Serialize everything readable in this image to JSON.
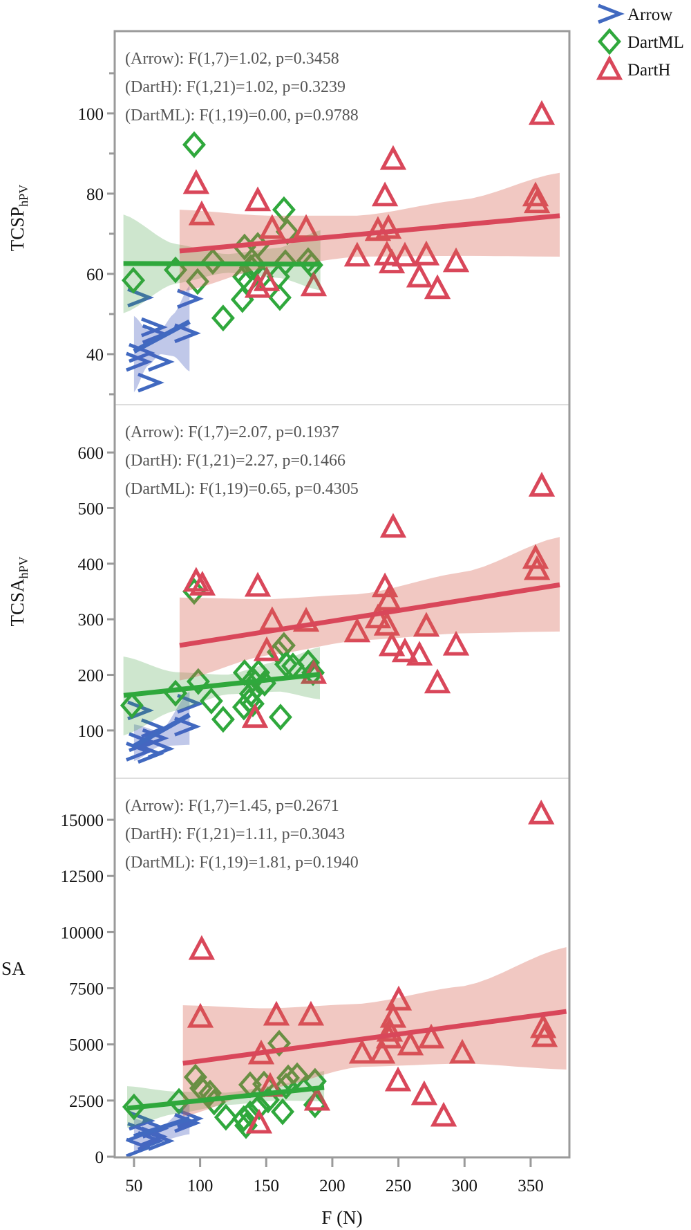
{
  "chart_data": {
    "type": "scatter",
    "xlabel": "F (N)",
    "xlim": [
      35.4,
      379.3
    ],
    "xticks": [
      50,
      100,
      150,
      200,
      250,
      300,
      350
    ],
    "legend": {
      "placement": "top-right-outside",
      "entries": [
        {
          "name": "Arrow",
          "marker": "chevron",
          "color": "#4169c0"
        },
        {
          "name": "DartML",
          "marker": "diamond",
          "color": "#2fa83c"
        },
        {
          "name": "DartH",
          "marker": "triangle",
          "color": "#d9475a"
        }
      ]
    },
    "colors": {
      "Arrow": "#4169c0",
      "DartML": "#2fa83c",
      "DartH": "#d9475a",
      "frame": "#9a9a9a",
      "divider": "#dddddd",
      "annotation": "#555555"
    },
    "panels": [
      {
        "ylabel": "TCSP",
        "ylabel_sub": "hPV",
        "ylabel_rotated": true,
        "ylim": [
          27.4,
          120.5
        ],
        "yticks": [
          40,
          60,
          80,
          100
        ],
        "yminor": [
          30,
          50,
          70,
          90,
          110
        ],
        "annotations": [
          "(Arrow): F(1,7)=1.02, p=0.3458",
          "(DartH): F(1,21)=1.02, p=0.3239",
          "(DartML): F(1,19)=0.00, p=0.9788"
        ],
        "series": {
          "Arrow": {
            "x": [
              52.6,
              53.7,
              54.7,
              61.5,
              64.1,
              65,
              69.3,
              89.2,
              91.3
            ],
            "y": [
              38.1,
              54.1,
              40.3,
              32.9,
              46.7,
              45,
              38.1,
              45.2,
              53.8
            ],
            "fit": {
              "x": [
                50,
                92
              ],
              "y": [
                40.7,
                48.1
              ]
            },
            "band": {
              "x": [
                50,
                60,
                70,
                80,
                92
              ],
              "lo": [
                30.5,
                37,
                40,
                39.5,
                35.7
              ],
              "hi": [
                49.5,
                46,
                46,
                50,
                57
              ]
            }
          },
          "DartML": {
            "x": [
              95.5,
              163.4,
              166,
              133.6,
              143.6,
              109.6,
              81.4,
              49.5,
              98.1,
              138.3,
              133.1,
              136.2,
              164.5,
              181.7,
              184.3,
              159.2,
              146.7,
              132,
              160.3,
              117.4,
              141.5
            ],
            "y": [
              92.2,
              76.0,
              70.5,
              66.7,
              67.1,
              63.1,
              61,
              58.4,
              58.1,
              61.6,
              59.3,
              58.1,
              62.8,
              63.3,
              62.2,
              59.3,
              59.3,
              53.6,
              54.1,
              49,
              62.2
            ],
            "fit": {
              "x": [
                42,
                191
              ],
              "y": [
                62.6,
                62.4
              ]
            },
            "band": {
              "x": [
                42,
                80,
                120,
                160,
                191
              ],
              "lo": [
                50.2,
                57.5,
                60.3,
                59,
                55.9
              ],
              "hi": [
                74.8,
                67.5,
                64.9,
                66.5,
                70.9
              ]
            }
          },
          "DartH": {
            "x": [
              358.4,
              246,
              239.8,
              353.7,
              354.8,
              234.5,
              242.4,
              218.8,
              241.3,
              245,
              254.9,
              271.1,
              293.6,
              265.9,
              279.5,
              97,
              101.2,
              143.6,
              154.5,
              180.2,
              150.4,
              143.6,
              185.9
            ],
            "y": [
              99.8,
              88.6,
              79.5,
              79.5,
              77.8,
              70.9,
              71.4,
              64.5,
              64.8,
              62.8,
              64.5,
              64.8,
              63.1,
              59.3,
              56.4,
              82.6,
              74.8,
              78.3,
              71.4,
              71.4,
              58.4,
              56.7,
              57.1
            ],
            "fit": {
              "x": [
                84.5,
                372
              ],
              "y": [
                65.7,
                74.5
              ]
            },
            "band": {
              "x": [
                84.5,
                150,
                220,
                300,
                372
              ],
              "lo": [
                55.5,
                61.5,
                64.3,
                64.5,
                64.3
              ],
              "hi": [
                76,
                74.5,
                74.5,
                78.5,
                85.2
              ]
            }
          }
        }
      },
      {
        "ylabel": "TCSA",
        "ylabel_sub": "hPV",
        "ylabel_rotated": true,
        "ylim": [
          14,
          686
        ],
        "yticks": [
          100,
          200,
          300,
          400,
          500,
          600
        ],
        "yminor": [],
        "annotations": [
          "(Arrow): F(1,7)=2.07, p=0.1937",
          "(DartH): F(1,21)=2.27, p=0.1466",
          "(DartML): F(1,19)=0.65, p=0.4305"
        ],
        "series": {
          "Arrow": {
            "x": [
              52.6,
              53.7,
              54.7,
              61.5,
              64.1,
              65,
              69.3,
              89.2,
              91.3
            ],
            "y": [
              62,
              136,
              79,
              58,
              104,
              86,
              67,
              107,
              148
            ],
            "fit": {
              "x": [
                50,
                92
              ],
              "y": [
                72,
                128
              ]
            },
            "band": {
              "x": [
                50,
                70,
                92
              ],
              "lo": [
                45,
                72,
                74
              ],
              "hi": [
                111,
                98,
                170
              ]
            }
          },
          "DartML": {
            "x": [
              95.5,
              163.4,
              159.2,
              133.6,
              98.6,
              144.1,
              165,
              181.7,
              185.4,
              81.4,
              48.4,
              108.5,
              139.9,
              148.8,
              138.3,
              133.1,
              139.9,
              117.4,
              160.8,
              170.2,
              137.3
            ],
            "y": [
              350,
              253,
              241,
              204,
              188,
              204,
              219,
              222,
              204,
              167,
              145,
              153,
              191,
              185,
              166,
              142,
              148,
              120,
              124,
              216,
              153
            ],
            "fit": {
              "x": [
                42.2,
                190.6
              ],
              "y": [
                163,
                201
              ]
            },
            "band": {
              "x": [
                42,
                80,
                120,
                160,
                190.6
              ],
              "lo": [
                91,
                135,
                165,
                170,
                156
              ],
              "hi": [
                233,
                205,
                200,
                225,
                250
              ]
            }
          },
          "DartH": {
            "x": [
              358.4,
              246,
              353.7,
              354.8,
              239.8,
              242.4,
              234.5,
              241.3,
              218.8,
              271.1,
              245,
              254.9,
              265.9,
              293.6,
              279.5,
              97,
              101.7,
              143.6,
              154.5,
              180.2,
              150.4,
              185.9,
              141.5
            ],
            "y": [
              540,
              466,
              410,
              390,
              359,
              335,
              303,
              290,
              278,
              288,
              253,
              242,
              236,
              254,
              186,
              369,
              362,
              360,
              298,
              297,
              244,
              203,
              124
            ],
            "fit": {
              "x": [
                84.5,
                372
              ],
              "y": [
                253,
                362
              ]
            },
            "band": {
              "x": [
                84.5,
                150,
                220,
                300,
                372
              ],
              "lo": [
                190,
                235,
                262,
                275,
                278
              ],
              "hi": [
                339,
                336,
                345,
                385,
                448
              ]
            }
          }
        }
      },
      {
        "ylabel": "SA",
        "ylabel_sub": "",
        "ylabel_rotated": false,
        "ylim": [
          -30,
          16850
        ],
        "yticks": [
          0,
          2500,
          5000,
          7500,
          10000,
          12500,
          15000
        ],
        "yminor": [],
        "annotations": [
          "(Arrow): F(1,7)=1.45, p=0.2671",
          "(DartH): F(1,21)=1.11, p=0.3043",
          "(DartML): F(1,19)=1.81, p=0.1940"
        ],
        "series": {
          "Arrow": {
            "x": [
              52.6,
              53.7,
              54.7,
              61.5,
              64.1,
              65,
              69.3,
              89.2,
              91.3
            ],
            "y": [
              400,
              1100,
              1600,
              700,
              900,
              1250,
              700,
              1500,
              1700
            ],
            "fit": {
              "x": [
                50,
                92
              ],
              "y": [
                900,
                1700
              ]
            },
            "band": {
              "x": [
                50,
                70,
                92
              ],
              "lo": [
                200,
                700,
                1000
              ],
              "hi": [
                1700,
                1300,
                2400
              ]
            }
          },
          "DartML": {
            "x": [
              159.8,
              96.5,
              100.7,
              137.8,
              148.3,
              166.6,
              173.4,
              186.9,
              165,
              50,
              84,
              110.6,
              119.5,
              133,
              137.8,
              134.7,
              151.4,
              162.4,
              186.9,
              144.6,
              107.5
            ],
            "y": [
              5051,
              3542,
              3049,
              3203,
              3234,
              3511,
              3603,
              3357,
              3141,
              2217,
              2464,
              2433,
              1755,
              1694,
              1909,
              1386,
              2525,
              2002,
              2310,
              2217,
              2833
            ],
            "fit": {
              "x": [
                44.8,
                193.8
              ],
              "y": [
                2156,
                3080
              ]
            },
            "band": {
              "x": [
                44.8,
                80,
                120,
                160,
                193.8
              ],
              "lo": [
                1293,
                1900,
                2300,
                2500,
                2464
              ],
              "hi": [
                3141,
                2900,
                2850,
                3200,
                3819
              ]
            }
          },
          "DartH": {
            "x": [
              100.2,
              157.7,
              183.8,
              250.2,
              246,
              243.4,
              242.9,
              146.2,
              222.5,
              237.7,
              259.1,
              274.8,
              298.3,
              359.5,
              360.5,
              249.7,
              269.5,
              284.2,
              144.6,
              188.5,
              153,
              101.2,
              358
            ],
            "y": [
              6221,
              6314,
              6314,
              6991,
              6221,
              5605,
              5297,
              4589,
              4620,
              4620,
              4989,
              5297,
              4620,
              5759,
              5359,
              3388,
              2772,
              1817,
              1509,
              2525,
              3141,
              9240,
              15275
            ],
            "fit": {
              "x": [
                87,
                377
              ],
              "y": [
                4158,
                6468
              ]
            },
            "band": {
              "x": [
                87,
                150,
                220,
                300,
                377
              ],
              "lo": [
                1800,
                3000,
                4000,
                4150,
                3880
              ],
              "hi": [
                6745,
                6600,
                6800,
                7600,
                9330
              ]
            }
          }
        }
      }
    ]
  }
}
